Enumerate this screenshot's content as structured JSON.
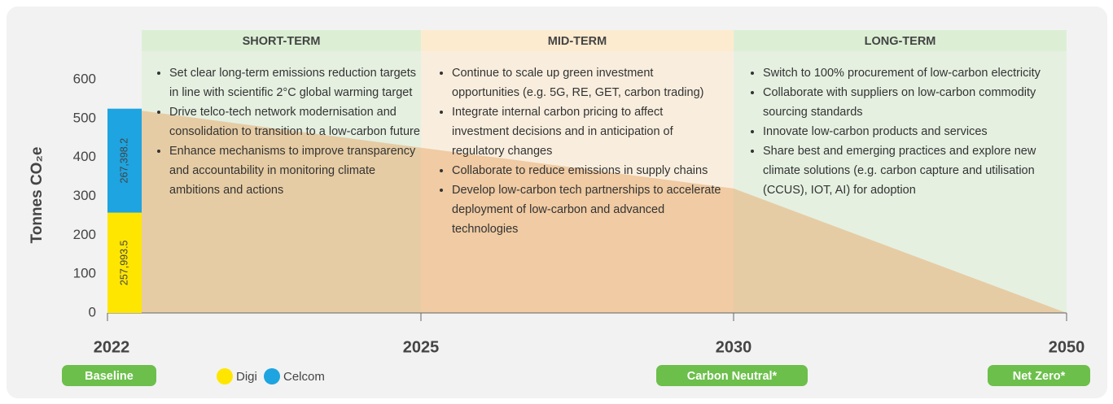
{
  "chart_data": {
    "type": "stacked_bar",
    "ylabel": "Tonnes CO₂e",
    "ylim": [
      0,
      600
    ],
    "yticks": [
      0,
      100,
      200,
      300,
      400,
      500,
      600
    ],
    "categories": [
      "2022",
      "2025",
      "2030",
      "2050"
    ],
    "series": [
      {
        "name": "Digi",
        "color": "#ffe600",
        "values": [
          257.9935,
          null,
          null,
          null
        ],
        "value_labels": [
          "257,993.5",
          null,
          null,
          null
        ]
      },
      {
        "name": "Celcom",
        "color": "#1ea4e0",
        "values": [
          267.3982,
          null,
          null,
          null
        ],
        "value_labels": [
          "267,398.2",
          null,
          null,
          null
        ]
      }
    ],
    "trajectory": {
      "color": "#e8a868",
      "values": [
        520,
        425,
        320,
        0
      ]
    },
    "milestones": [
      "Baseline",
      null,
      "Carbon Neutral*",
      "Net Zero*"
    ],
    "phases": [
      {
        "title": "SHORT-TERM",
        "color": "#dcefd5",
        "bullets": [
          "Set clear long-term emissions reduction targets in line with scientific 2°C global warming target",
          "Drive telco-tech network modernisation and consolidation to transition to a low-carbon future",
          "Enhance mechanisms to improve transparency and accountability in monitoring climate ambitions and actions"
        ]
      },
      {
        "title": "MID-TERM",
        "color": "#fdebd0",
        "bullets": [
          "Continue to scale up green investment opportunities (e.g. 5G, RE, GET, carbon trading)",
          "Integrate internal carbon pricing to affect investment decisions and in anticipation of regulatory changes",
          "Collaborate to reduce emissions in supply chains",
          "Develop low-carbon tech partnerships to accelerate deployment of low-carbon and advanced technologies"
        ]
      },
      {
        "title": "LONG-TERM",
        "color": "#dcefd5",
        "bullets": [
          "Switch to 100% procurement of low-carbon electricity",
          "Collaborate with suppliers on low-carbon commodity sourcing standards",
          "Innovate low-carbon products and services",
          "Share best and emerging practices and explore new climate solutions (e.g. carbon capture and utilisation (CCUS), IOT, AI) for adoption"
        ]
      }
    ]
  }
}
